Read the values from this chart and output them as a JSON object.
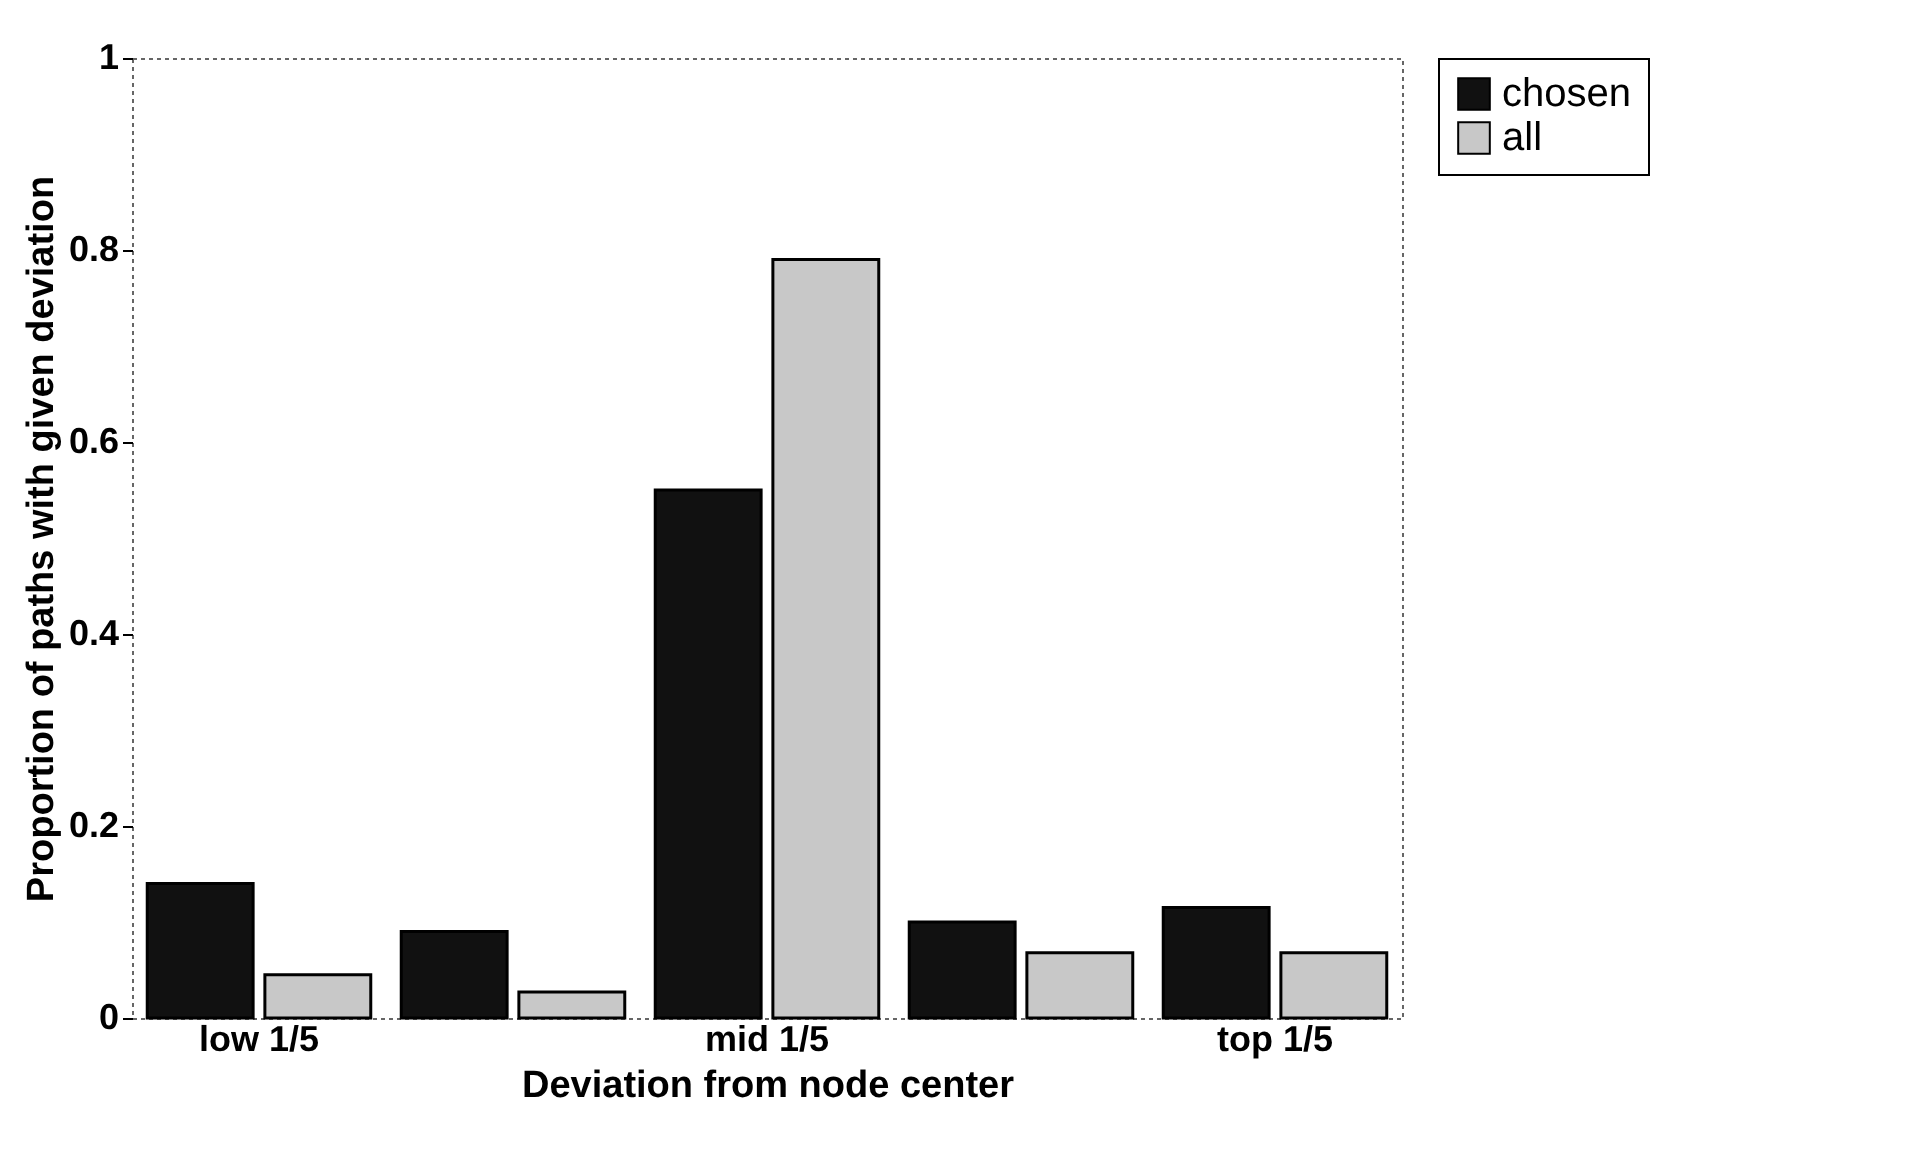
{
  "chart_data": {
    "type": "bar",
    "xlabel": "Deviation from node center",
    "ylabel": "Proportion of paths with given deviation",
    "categories": [
      "low 1/5",
      null,
      "mid 1/5",
      null,
      "top 1/5"
    ],
    "series": [
      {
        "name": "chosen",
        "color": "#111111",
        "values": [
          0.14,
          0.09,
          0.55,
          0.1,
          0.115
        ]
      },
      {
        "name": "all",
        "color": "#c8c8c8",
        "values": [
          0.045,
          0.027,
          0.79,
          0.068,
          0.068
        ]
      }
    ],
    "ylim": [
      0,
      1
    ],
    "yticks": [
      0,
      0.2,
      0.4,
      0.6,
      0.8,
      1
    ],
    "grid": false,
    "legend": "top right"
  }
}
